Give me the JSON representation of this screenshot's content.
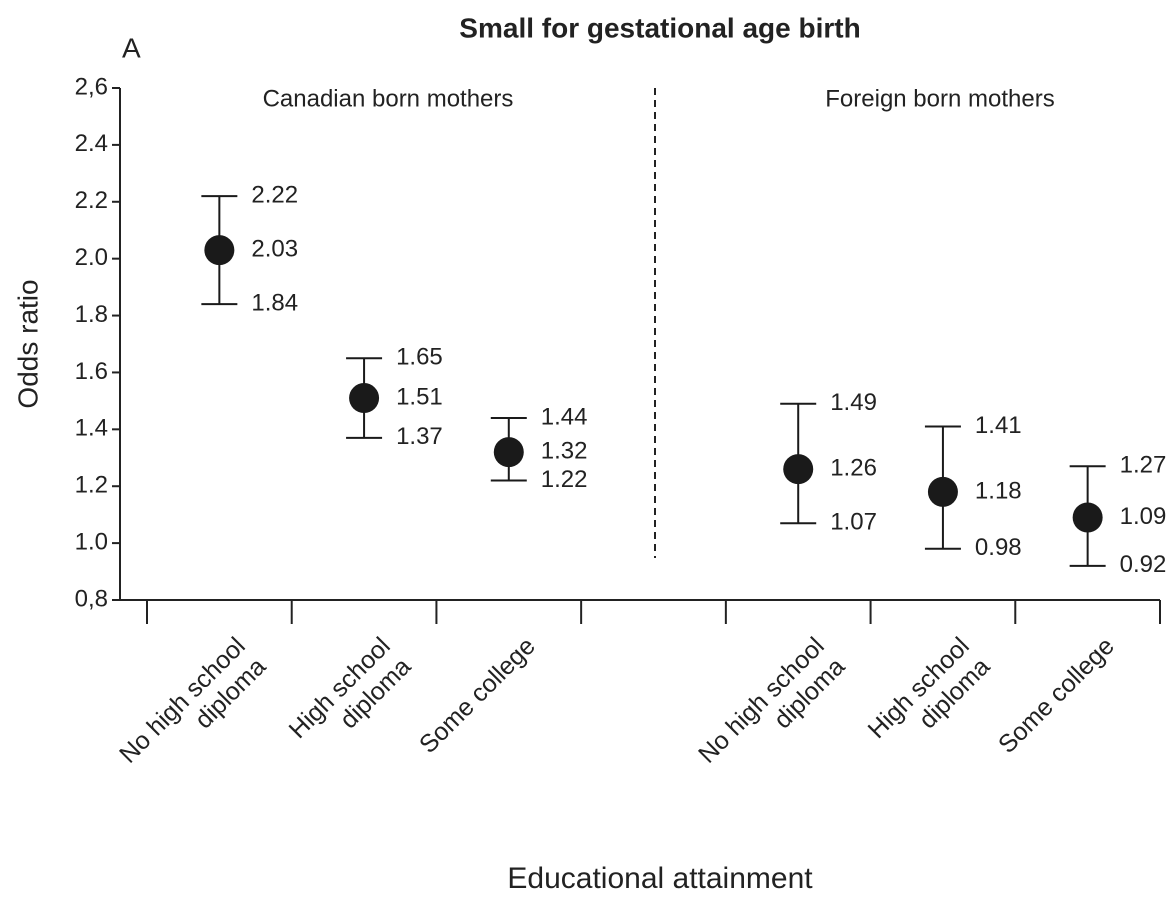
{
  "chart_data": {
    "type": "errorbar",
    "title": "Small for gestational age birth",
    "panel_label": "A",
    "y_label": "Odds ratio",
    "x_label": "Educational attainment",
    "annotations": [
      "Canadian born mothers",
      "Foreign born mothers"
    ],
    "categories": [
      "No high school diploma",
      "High school diploma",
      "Some college",
      null,
      "No high school diploma",
      "High school diploma",
      "Some college"
    ],
    "values": [
      2.03,
      1.51,
      1.32,
      null,
      1.26,
      1.18,
      1.09
    ],
    "lower": [
      1.84,
      1.37,
      1.22,
      null,
      1.07,
      0.98,
      0.92
    ],
    "upper": [
      2.22,
      1.65,
      1.44,
      null,
      1.49,
      1.41,
      1.27
    ],
    "color": "#1a1a1a",
    "ylim": [
      0.8,
      2.6
    ],
    "yticks": [
      {
        "value": 0.8,
        "label": "0,8"
      },
      {
        "value": 1.0,
        "label": "1.0"
      },
      1.2,
      1.4,
      1.6,
      1.8,
      {
        "value": 2.0,
        "label": "2.0"
      },
      2.2,
      2.4,
      {
        "value": 2.6,
        "label": "2,6"
      }
    ],
    "grid": false
  }
}
